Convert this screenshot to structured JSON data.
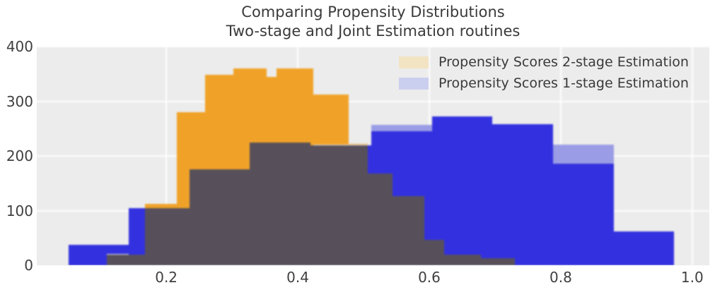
{
  "title": {
    "line1": "Comparing Propensity Distributions",
    "line2": "Two-stage and Joint Estimation routines"
  },
  "legend": {
    "items": [
      {
        "label": "Propensity Scores 2-stage Estimation",
        "swatch_color": "#f2e3c3"
      },
      {
        "label": "Propensity Scores 1-stage Estimation",
        "swatch_color": "#cbcfef"
      }
    ]
  },
  "axes": {
    "x_ticks": [
      "0.2",
      "0.4",
      "0.6",
      "0.8",
      "1.0"
    ],
    "x_tick_values": [
      0.2,
      0.4,
      0.6,
      0.8,
      1.0
    ],
    "y_ticks": [
      "0",
      "100",
      "200",
      "300",
      "400"
    ],
    "y_tick_values": [
      0,
      100,
      200,
      300,
      400
    ]
  },
  "chart_data": {
    "type": "bar",
    "subtype": "overlaid-histograms",
    "title": "Comparing Propensity Distributions — Two-stage and Joint Estimation routines",
    "xlabel": "",
    "ylabel": "",
    "xlim": [
      0.003,
      1.026
    ],
    "ylim": [
      0,
      400
    ],
    "grid": true,
    "legend_position": "upper right",
    "colors": {
      "orange_bar": "#f0a228",
      "blue_bar": "#3331df",
      "overlap": "#57505a",
      "light_blue_cap": "#9a9ce5",
      "plot_background": "#ececec",
      "grid_color": "#ffffff",
      "text_color": "#3a3a3a"
    },
    "series": [
      {
        "name": "Propensity Scores 2-stage Estimation",
        "color": "#f0a228",
        "bin_edges": [
          0.109,
          0.168,
          0.216,
          0.259,
          0.302,
          0.353,
          0.368,
          0.424,
          0.477,
          0.506,
          0.544,
          0.592,
          0.623,
          0.679,
          0.73
        ],
        "counts": [
          20,
          112,
          280,
          348,
          360,
          345,
          360,
          312,
          222,
          168,
          127,
          47,
          19,
          13
        ]
      },
      {
        "name": "Propensity Scores 1-stage Estimation",
        "color": "#3331df",
        "bin_edges": [
          0.051,
          0.143,
          0.235,
          0.327,
          0.419,
          0.512,
          0.604,
          0.696,
          0.788,
          0.881,
          0.972
        ],
        "counts": [
          38,
          105,
          175,
          225,
          220,
          245,
          272,
          258,
          186,
          62
        ],
        "light_caps": [
          {
            "x_start": 0.512,
            "x_end": 0.604,
            "y_from": 245,
            "y_to": 257
          },
          {
            "x_start": 0.788,
            "x_end": 0.881,
            "y_from": 186,
            "y_to": 221
          }
        ]
      }
    ]
  }
}
